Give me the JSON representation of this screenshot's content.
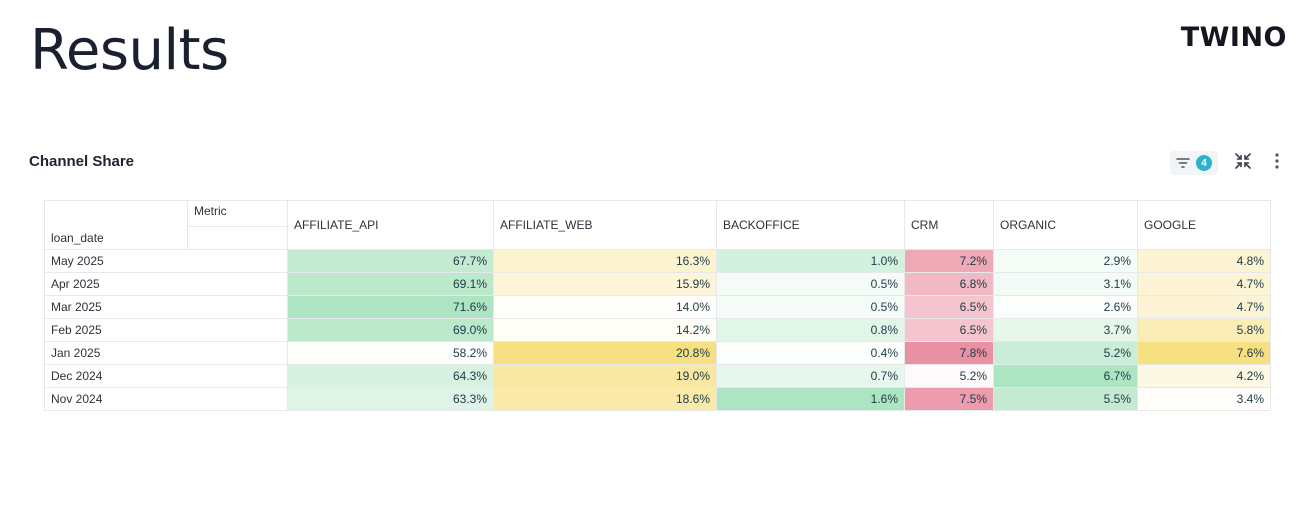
{
  "slide": {
    "title": "Results",
    "brand": "TWINO"
  },
  "panel": {
    "title": "Channel Share",
    "filter_count": "4",
    "icons": [
      "filter-icon",
      "collapse-icon",
      "more-vertical-icon"
    ]
  },
  "table": {
    "corner_top": "Metric",
    "corner_bottom": "loan_date",
    "columns": [
      "AFFILIATE_API",
      "AFFILIATE_WEB",
      "BACKOFFICE",
      "CRM",
      "ORGANIC",
      "GOOGLE"
    ],
    "rows": [
      {
        "label": "May 2025",
        "values": [
          "67.7%",
          "16.3%",
          "1.0%",
          "7.2%",
          "2.9%",
          "4.8%"
        ]
      },
      {
        "label": "Apr 2025",
        "values": [
          "69.1%",
          "15.9%",
          "0.5%",
          "6.8%",
          "3.1%",
          "4.7%"
        ]
      },
      {
        "label": "Mar 2025",
        "values": [
          "71.6%",
          "14.0%",
          "0.5%",
          "6.5%",
          "2.6%",
          "4.7%"
        ]
      },
      {
        "label": "Feb 2025",
        "values": [
          "69.0%",
          "14.2%",
          "0.8%",
          "6.5%",
          "3.7%",
          "5.8%"
        ]
      },
      {
        "label": "Jan 2025",
        "values": [
          "58.2%",
          "20.8%",
          "0.4%",
          "7.8%",
          "5.2%",
          "7.6%"
        ]
      },
      {
        "label": "Dec 2024",
        "values": [
          "64.3%",
          "19.0%",
          "0.7%",
          "5.2%",
          "6.7%",
          "4.2%"
        ]
      },
      {
        "label": "Nov 2024",
        "values": [
          "63.3%",
          "18.6%",
          "1.6%",
          "7.5%",
          "5.5%",
          "3.4%"
        ]
      }
    ],
    "column_colors": [
      "#a8e2bd",
      "#f6de7a",
      "#a8e2bd",
      "#e8899c",
      "#a8e2bd",
      "#f6de7a"
    ]
  }
}
